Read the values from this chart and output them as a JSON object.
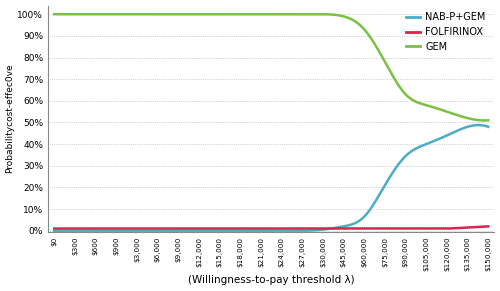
{
  "title": "",
  "xlabel": "(Willingness-to-pay threshold λ)",
  "ylabel": "Probabilitycost-effec0ve",
  "x_tick_labels": [
    "$0",
    "$300",
    "$600",
    "$900",
    "$3,000",
    "$6,000",
    "$9,000",
    "$12,000",
    "$15,000",
    "$18,000",
    "$21,000",
    "$24,000",
    "$27,000",
    "$30,000",
    "$45,000",
    "$60,000",
    "$75,000",
    "$90,000",
    "$105,000",
    "$120,000",
    "$135,000",
    "$150,000"
  ],
  "y_ticks": [
    0.0,
    0.1,
    0.2,
    0.3,
    0.4,
    0.5,
    0.6,
    0.7,
    0.8,
    0.9,
    1.0
  ],
  "y_tick_labels": [
    "0%",
    "10%",
    "20%",
    "30%",
    "40%",
    "50%",
    "60%",
    "70%",
    "80%",
    "90%",
    "100%"
  ],
  "gem_color": "#7ac143",
  "nab_color": "#4bacc6",
  "folf_color": "#d9244d",
  "legend_labels": [
    "NAB-P+GEM",
    "FOLFIRINOX",
    "GEM"
  ],
  "gem_y": [
    1.0,
    1.0,
    1.0,
    1.0,
    1.0,
    1.0,
    1.0,
    1.0,
    1.0,
    1.0,
    1.0,
    1.0,
    1.0,
    1.0,
    0.99,
    0.93,
    0.78,
    0.63,
    0.58,
    0.55,
    0.52,
    0.51
  ],
  "nab_y": [
    0.0,
    0.0,
    0.0,
    0.0,
    0.0,
    0.0,
    0.0,
    0.0,
    0.0,
    0.0,
    0.0,
    0.0,
    0.0,
    0.005,
    0.02,
    0.065,
    0.21,
    0.345,
    0.4,
    0.44,
    0.48,
    0.48
  ],
  "folf_y": [
    0.01,
    0.01,
    0.01,
    0.01,
    0.01,
    0.01,
    0.01,
    0.01,
    0.01,
    0.01,
    0.01,
    0.01,
    0.01,
    0.01,
    0.01,
    0.01,
    0.01,
    0.01,
    0.01,
    0.01,
    0.015,
    0.02
  ],
  "background_color": "#ffffff",
  "line_width": 1.8
}
